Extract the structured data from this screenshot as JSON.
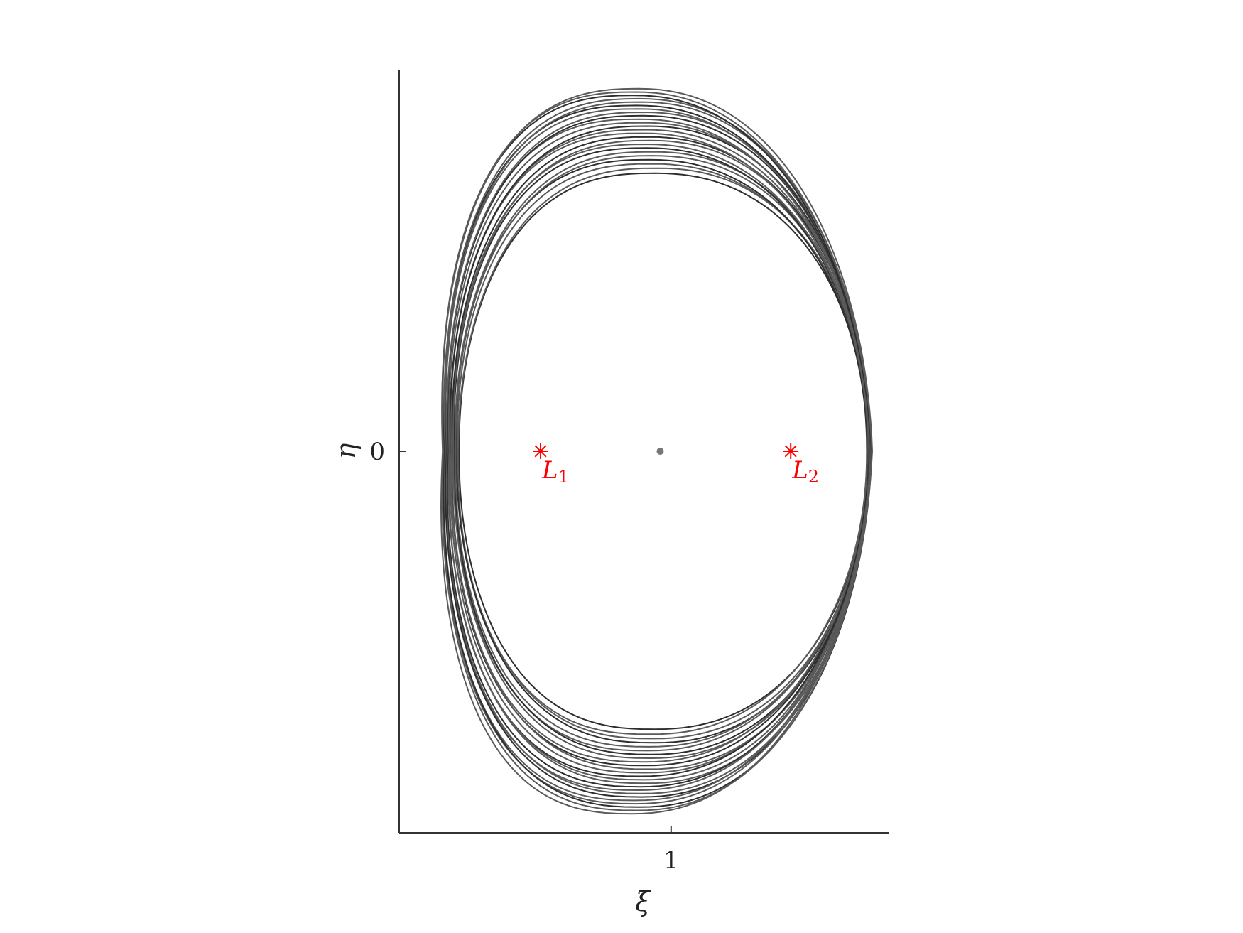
{
  "chart_data": {
    "type": "line",
    "title": "",
    "xlabel": "ξ",
    "ylabel": "η",
    "x_ticks": [
      {
        "value": 1,
        "label": "1"
      }
    ],
    "y_ticks": [
      {
        "value": 0,
        "label": "0"
      }
    ],
    "xlim": [
      0.0,
      1.8
    ],
    "ylim": [
      -1.4,
      1.4
    ],
    "grid": false,
    "legend": "none",
    "orbit_band": {
      "description_free": true,
      "inner": {
        "center": [
          0.94,
          0.0
        ],
        "a_left": 0.72,
        "a_right": 0.78,
        "b_top": 1.02,
        "b_bottom": 1.02
      },
      "outer": {
        "center": [
          0.94,
          0.0
        ],
        "a_left": 0.78,
        "a_right": 0.8,
        "b_top": 1.33,
        "b_bottom": 1.33
      },
      "n_loops": 24,
      "color": "#3a3a3a"
    },
    "center_point": {
      "x": 0.96,
      "y": 0.0,
      "color": "#777777"
    },
    "points": [
      {
        "name": "L",
        "subscript": "1",
        "x": 0.52,
        "y": 0.0,
        "color": "#ff0000"
      },
      {
        "name": "L",
        "subscript": "2",
        "x": 1.44,
        "y": 0.0,
        "color": "#ff0000"
      }
    ]
  }
}
